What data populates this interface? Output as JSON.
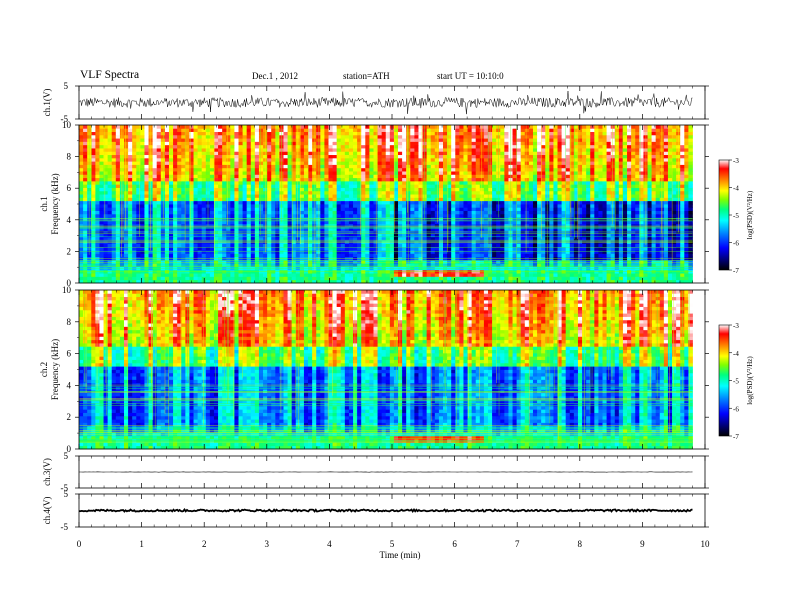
{
  "header": {
    "title": "VLF  Spectra",
    "date": "Dec.1  , 2012",
    "station": "station=ATH",
    "start": "start  UT  =   10:10:0"
  },
  "colors": {
    "scale": [
      "#000000",
      "#00007f",
      "#0000ff",
      "#0080ff",
      "#00ffff",
      "#00ff80",
      "#80ff00",
      "#ffff00",
      "#ff8000",
      "#ff0000",
      "#ffffff"
    ]
  },
  "chart_data": [
    {
      "type": "line",
      "name": "ch1-waveform",
      "ylabel": "ch.1(V)",
      "yticks": [
        "5",
        "-5"
      ],
      "ylim": [
        -5,
        5
      ],
      "xlim": [
        0,
        10
      ],
      "baseline": 0,
      "amplitude": 1.5,
      "data_end": 9.8
    },
    {
      "type": "heatmap",
      "name": "ch1-spectrogram",
      "ylabel": "ch.1\nFrequency (kHz)",
      "ylabel_lines": [
        "ch.1",
        "Frequency  (kHz)"
      ],
      "yticks": [
        "0",
        "2",
        "4",
        "6",
        "8",
        "10"
      ],
      "ylim": [
        0,
        10
      ],
      "xlim": [
        0,
        10
      ],
      "data_end": 9.8,
      "colorbar": {
        "label": "log(PSD)(V²/Hz)",
        "ticks": [
          "-3",
          "-4",
          "-5",
          "-6",
          "-7"
        ],
        "range": [
          -7,
          -3
        ]
      }
    },
    {
      "type": "heatmap",
      "name": "ch2-spectrogram",
      "ylabel_lines": [
        "ch.2",
        "Frequency  (kHz)"
      ],
      "yticks": [
        "0",
        "2",
        "4",
        "6",
        "8",
        "10"
      ],
      "ylim": [
        0,
        10
      ],
      "xlim": [
        0,
        10
      ],
      "data_end": 9.8,
      "colorbar": {
        "label": "log(PSD)(V²/Hz)",
        "ticks": [
          "-3",
          "-4",
          "-5",
          "-6",
          "-7"
        ],
        "range": [
          -7,
          -3
        ]
      }
    },
    {
      "type": "line",
      "name": "ch3-waveform",
      "ylabel": "ch.3(V)",
      "yticks": [
        "5",
        "-5"
      ],
      "ylim": [
        -5,
        5
      ],
      "xlim": [
        0,
        10
      ],
      "baseline": 0,
      "amplitude": 0.05,
      "data_end": 9.8
    },
    {
      "type": "line",
      "name": "ch4-waveform",
      "ylabel": "ch.4(V)",
      "yticks": [
        "5",
        "-5"
      ],
      "ylim": [
        -5,
        5
      ],
      "xlim": [
        0,
        10
      ],
      "baseline": 0,
      "amplitude": 0.3,
      "data_end": 9.8
    }
  ],
  "xaxis": {
    "label": "Time  (min)",
    "ticks": [
      "0",
      "1",
      "2",
      "3",
      "4",
      "5",
      "6",
      "7",
      "8",
      "9",
      "10"
    ]
  }
}
